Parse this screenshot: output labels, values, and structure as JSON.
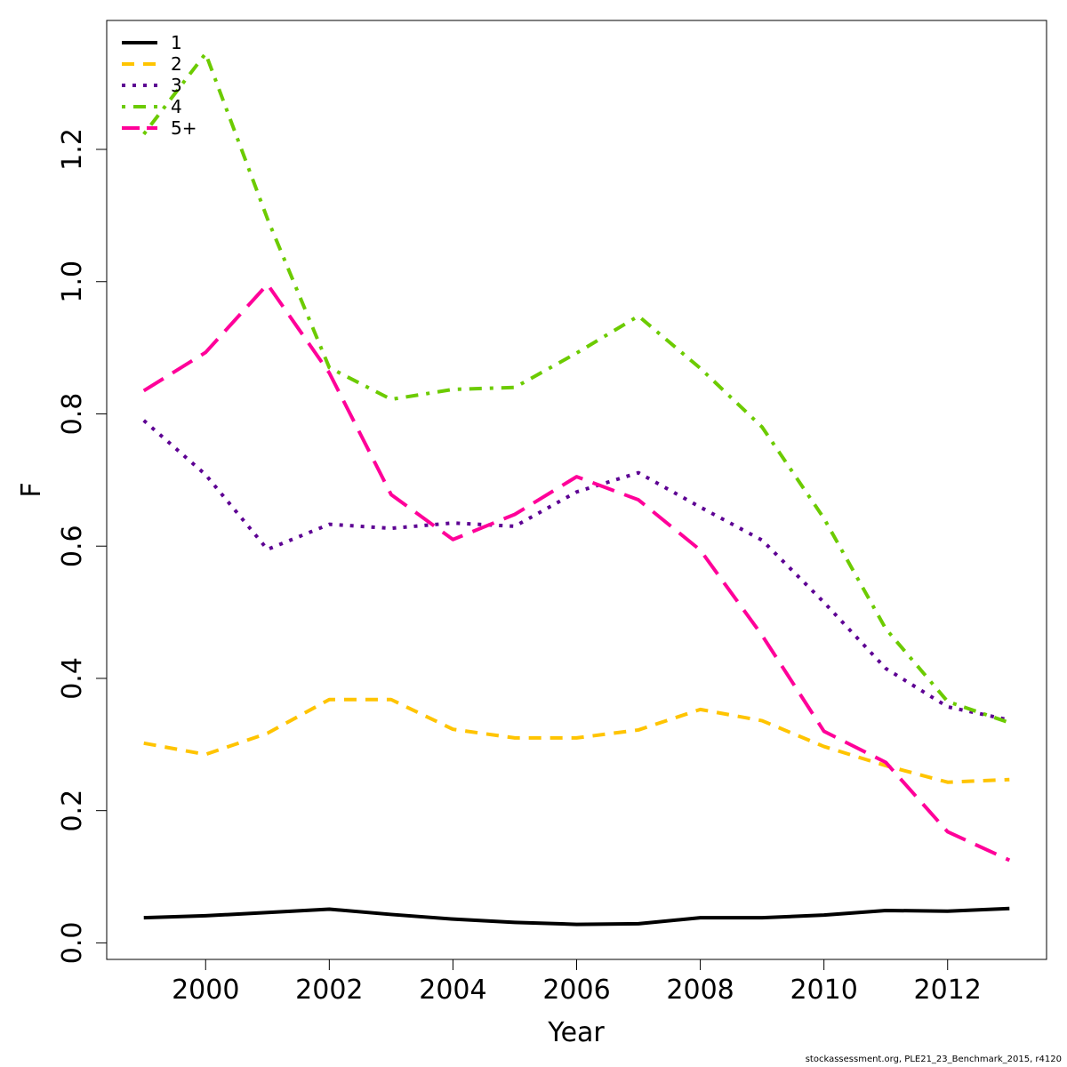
{
  "chart_data": {
    "type": "line",
    "xlabel": "Year",
    "ylabel": "F",
    "xlim": [
      1998.4,
      2013.6
    ],
    "ylim": [
      -0.025,
      1.395
    ],
    "xticks": [
      2000,
      2002,
      2004,
      2006,
      2008,
      2010,
      2012
    ],
    "yticks": [
      0.0,
      0.2,
      0.4,
      0.6,
      0.8,
      1.0,
      1.2
    ],
    "ytick_labels": [
      "0.0",
      "0.2",
      "0.4",
      "0.6",
      "0.8",
      "1.0",
      "1.2"
    ],
    "legend_position": "top-left",
    "grid": false,
    "x": [
      1999,
      2000,
      2001,
      2002,
      2003,
      2004,
      2005,
      2006,
      2007,
      2008,
      2009,
      2010,
      2011,
      2012,
      2013
    ],
    "series": [
      {
        "name": "1",
        "color": "#000000",
        "dash": "solid",
        "values": [
          0.038,
          0.041,
          0.046,
          0.051,
          0.043,
          0.036,
          0.031,
          0.028,
          0.029,
          0.038,
          0.038,
          0.042,
          0.049,
          0.048,
          0.052
        ]
      },
      {
        "name": "2",
        "color": "#FFC400",
        "dash": "dashed",
        "values": [
          0.302,
          0.285,
          0.317,
          0.368,
          0.368,
          0.323,
          0.31,
          0.31,
          0.322,
          0.353,
          0.336,
          0.297,
          0.268,
          0.243,
          0.247
        ]
      },
      {
        "name": "3",
        "color": "#5D0093",
        "dash": "dotted",
        "values": [
          0.79,
          0.708,
          0.595,
          0.633,
          0.627,
          0.635,
          0.63,
          0.682,
          0.711,
          0.659,
          0.609,
          0.515,
          0.415,
          0.357,
          0.337
        ]
      },
      {
        "name": "4",
        "color": "#6CCB00",
        "dash": "dotdash",
        "values": [
          1.223,
          1.345,
          1.095,
          0.87,
          0.822,
          0.837,
          0.84,
          0.892,
          0.948,
          0.869,
          0.78,
          0.642,
          0.475,
          0.365,
          0.333
        ]
      },
      {
        "name": "5+",
        "color": "#FF0099",
        "dash": "longdash",
        "values": [
          0.835,
          0.893,
          0.996,
          0.862,
          0.678,
          0.61,
          0.648,
          0.705,
          0.67,
          0.594,
          0.465,
          0.32,
          0.273,
          0.168,
          0.125
        ]
      }
    ]
  },
  "footer": "stockassessment.org, PLE21_23_Benchmark_2015, r4120"
}
